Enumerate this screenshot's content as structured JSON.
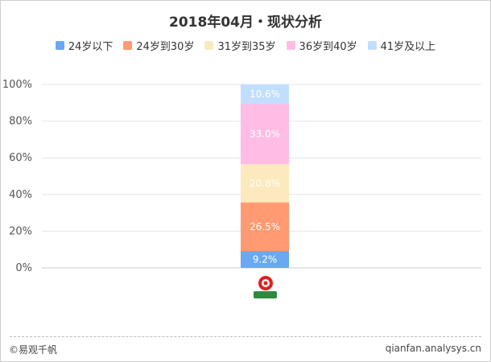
{
  "chart_data": {
    "type": "bar",
    "stacked": true,
    "title": "2018年04月・现状分析",
    "categories": [
      ""
    ],
    "y_ticks": [
      "0%",
      "20%",
      "40%",
      "60%",
      "80%",
      "100%"
    ],
    "ylim": [
      0,
      100
    ],
    "grid": true,
    "legend_position": "top",
    "series": [
      {
        "name": "24岁以下",
        "values": [
          9.2
        ],
        "label": "9.2%",
        "color": "#6aa8f2",
        "label_color": "#ffffff"
      },
      {
        "name": "24岁到30岁",
        "values": [
          26.5
        ],
        "label": "26.5%",
        "color": "#ff9a72",
        "label_color": "#ffffff"
      },
      {
        "name": "31岁到35岁",
        "values": [
          20.8
        ],
        "label": "20.8%",
        "color": "#fce9bd",
        "label_color": "#ffffff"
      },
      {
        "name": "36岁到40岁",
        "values": [
          33.0
        ],
        "label": "33.0%",
        "color": "#ffbde5",
        "label_color": "#ffffff"
      },
      {
        "name": "41岁及以上",
        "values": [
          10.6
        ],
        "label": "10.6%",
        "color": "#c2deff",
        "label_color": "#ffffff"
      }
    ]
  },
  "footer": {
    "source": "©易观千帆",
    "url": "qianfan.analysys.cn"
  }
}
